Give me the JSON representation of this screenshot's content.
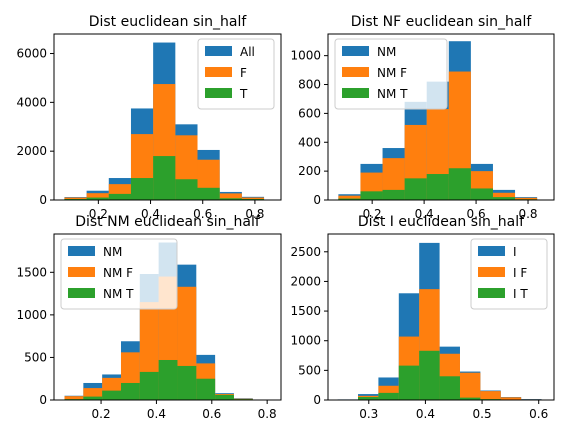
{
  "chart_data": [
    {
      "type": "bar",
      "title": "Dist euclidean sin_half",
      "xlabel": "",
      "ylabel": "",
      "xlim": [
        0.03,
        0.9
      ],
      "ylim": [
        0,
        6800
      ],
      "x_ticks": [
        0.2,
        0.4,
        0.6,
        0.8
      ],
      "x_tick_labels": [
        "0.2",
        "0.4",
        "0.6",
        "0.8"
      ],
      "y_ticks": [
        0,
        2000,
        4000,
        6000
      ],
      "y_tick_labels": [
        "0",
        "2000",
        "4000",
        "6000"
      ],
      "legend_position": "top-right",
      "bin_edges": [
        0.07,
        0.155,
        0.24,
        0.325,
        0.41,
        0.495,
        0.58,
        0.665,
        0.75,
        0.835
      ],
      "series": [
        {
          "name": "All",
          "color": "#1f77b4",
          "values": [
            120,
            380,
            900,
            3750,
            6450,
            3100,
            2050,
            330,
            130
          ]
        },
        {
          "name": "F",
          "color": "#ff7f0e",
          "values": [
            100,
            280,
            650,
            2700,
            4750,
            2650,
            1650,
            270,
            100
          ]
        },
        {
          "name": "T",
          "color": "#2ca02c",
          "values": [
            40,
            100,
            250,
            900,
            1800,
            850,
            500,
            70,
            40
          ]
        }
      ]
    },
    {
      "type": "bar",
      "title": "Dist NF euclidean sin_half",
      "xlabel": "",
      "ylabel": "",
      "xlim": [
        0.03,
        0.9
      ],
      "ylim": [
        0,
        1150
      ],
      "x_ticks": [
        0.2,
        0.4,
        0.6,
        0.8
      ],
      "x_tick_labels": [
        "0.2",
        "0.4",
        "0.6",
        "0.8"
      ],
      "y_ticks": [
        0,
        200,
        400,
        600,
        800,
        1000
      ],
      "y_tick_labels": [
        "0",
        "200",
        "400",
        "600",
        "800",
        "1000"
      ],
      "legend_position": "top-left",
      "bin_edges": [
        0.07,
        0.155,
        0.24,
        0.325,
        0.41,
        0.495,
        0.58,
        0.665,
        0.75,
        0.835
      ],
      "series": [
        {
          "name": "NM",
          "color": "#1f77b4",
          "values": [
            40,
            250,
            360,
            680,
            820,
            1100,
            250,
            70,
            20
          ]
        },
        {
          "name": "NM F",
          "color": "#ff7f0e",
          "values": [
            30,
            190,
            290,
            520,
            630,
            890,
            200,
            50,
            15
          ]
        },
        {
          "name": "NM T",
          "color": "#2ca02c",
          "values": [
            10,
            60,
            70,
            150,
            180,
            220,
            80,
            20,
            5
          ]
        }
      ]
    },
    {
      "type": "bar",
      "title": "Dist NM euclidean sin_half",
      "xlabel": "",
      "ylabel": "",
      "xlim": [
        0.03,
        0.85
      ],
      "ylim": [
        0,
        1950
      ],
      "x_ticks": [
        0.2,
        0.4,
        0.6,
        0.8
      ],
      "x_tick_labels": [
        "0.2",
        "0.4",
        "0.6",
        "0.8"
      ],
      "y_ticks": [
        0,
        500,
        1000,
        1500
      ],
      "y_tick_labels": [
        "0",
        "500",
        "1000",
        "1500"
      ],
      "legend_position": "top-left",
      "bin_edges": [
        0.068,
        0.136,
        0.204,
        0.272,
        0.34,
        0.408,
        0.476,
        0.544,
        0.612,
        0.68,
        0.748
      ],
      "series": [
        {
          "name": "NM",
          "color": "#1f77b4",
          "values": [
            50,
            200,
            300,
            690,
            1480,
            1850,
            1590,
            530,
            80,
            20
          ]
        },
        {
          "name": "NM F",
          "color": "#ff7f0e",
          "values": [
            45,
            140,
            260,
            560,
            1150,
            1450,
            1330,
            430,
            70,
            15
          ]
        },
        {
          "name": "NM T",
          "color": "#2ca02c",
          "values": [
            10,
            40,
            110,
            200,
            330,
            470,
            400,
            250,
            60,
            10
          ]
        }
      ]
    },
    {
      "type": "bar",
      "title": "Dist I euclidean sin_half",
      "xlabel": "",
      "ylabel": "",
      "xlim": [
        0.228,
        0.627
      ],
      "ylim": [
        0,
        2800
      ],
      "x_ticks": [
        0.3,
        0.4,
        0.5,
        0.6
      ],
      "x_tick_labels": [
        "0.3",
        "0.4",
        "0.5",
        "0.6"
      ],
      "y_ticks": [
        0,
        500,
        1000,
        1500,
        2000,
        2500
      ],
      "y_tick_labels": [
        "0",
        "500",
        "1000",
        "1500",
        "2000",
        "2500"
      ],
      "legend_position": "top-right",
      "bin_edges": [
        0.245,
        0.281,
        0.317,
        0.353,
        0.389,
        0.425,
        0.461,
        0.497,
        0.533,
        0.569,
        0.605
      ],
      "series": [
        {
          "name": "I",
          "color": "#1f77b4",
          "values": [
            10,
            100,
            380,
            1800,
            2650,
            900,
            480,
            160,
            50,
            15
          ]
        },
        {
          "name": "I F",
          "color": "#ff7f0e",
          "values": [
            5,
            70,
            240,
            1070,
            1870,
            780,
            460,
            150,
            45,
            10
          ]
        },
        {
          "name": "I T",
          "color": "#2ca02c",
          "values": [
            5,
            50,
            120,
            580,
            830,
            400,
            40,
            15,
            5,
            5
          ]
        }
      ]
    }
  ]
}
